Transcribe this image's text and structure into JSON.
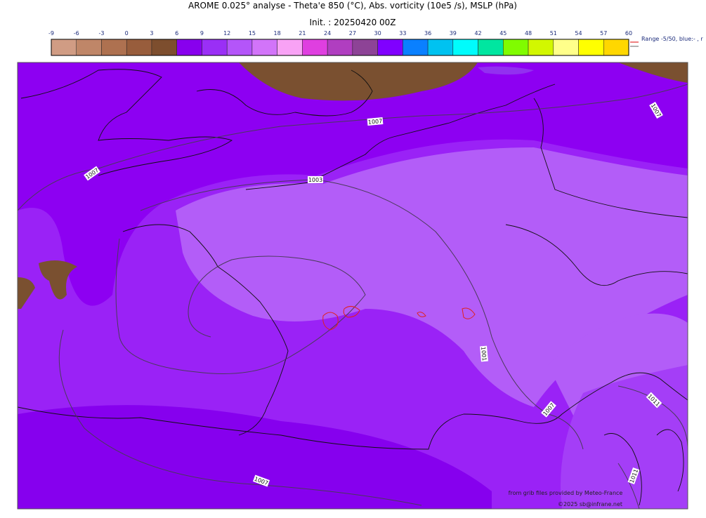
{
  "header": {
    "title": "AROME 0.025° analyse - Theta'e 850 (°C), Abs. vorticity (10e5 /s), MSLP (hPa)",
    "init": "Init. : 20250420 00Z"
  },
  "colorbar": {
    "ticks": [
      -9,
      -6,
      -3,
      0,
      3,
      6,
      9,
      12,
      15,
      18,
      21,
      24,
      27,
      30,
      33,
      36,
      39,
      42,
      45,
      48,
      51,
      54,
      57,
      60
    ],
    "colors": [
      "#d09c84",
      "#bf8668",
      "#ae7150",
      "#985d3c",
      "#7d4e2e",
      "#8800ee",
      "#9a2ff6",
      "#b455f9",
      "#d274f9",
      "#f8a2f5",
      "#df3fe0",
      "#b03ec0",
      "#8d4396",
      "#8000ff",
      "#0a80ff",
      "#00c2f0",
      "#00fcfc",
      "#00e6a0",
      "#80fc00",
      "#d2f700",
      "#ffff8a",
      "#ffff00",
      "#ffd700"
    ],
    "note": "Range -5/50, blue:- , r"
  },
  "isobars": [
    "1007",
    "1007",
    "1003",
    "1007",
    "1001",
    "1007",
    "1011",
    "1011",
    "1007"
  ],
  "credits": {
    "source": "from grib files provided by Meteo-France",
    "copyright": "©2025 sb@infrane.net"
  }
}
